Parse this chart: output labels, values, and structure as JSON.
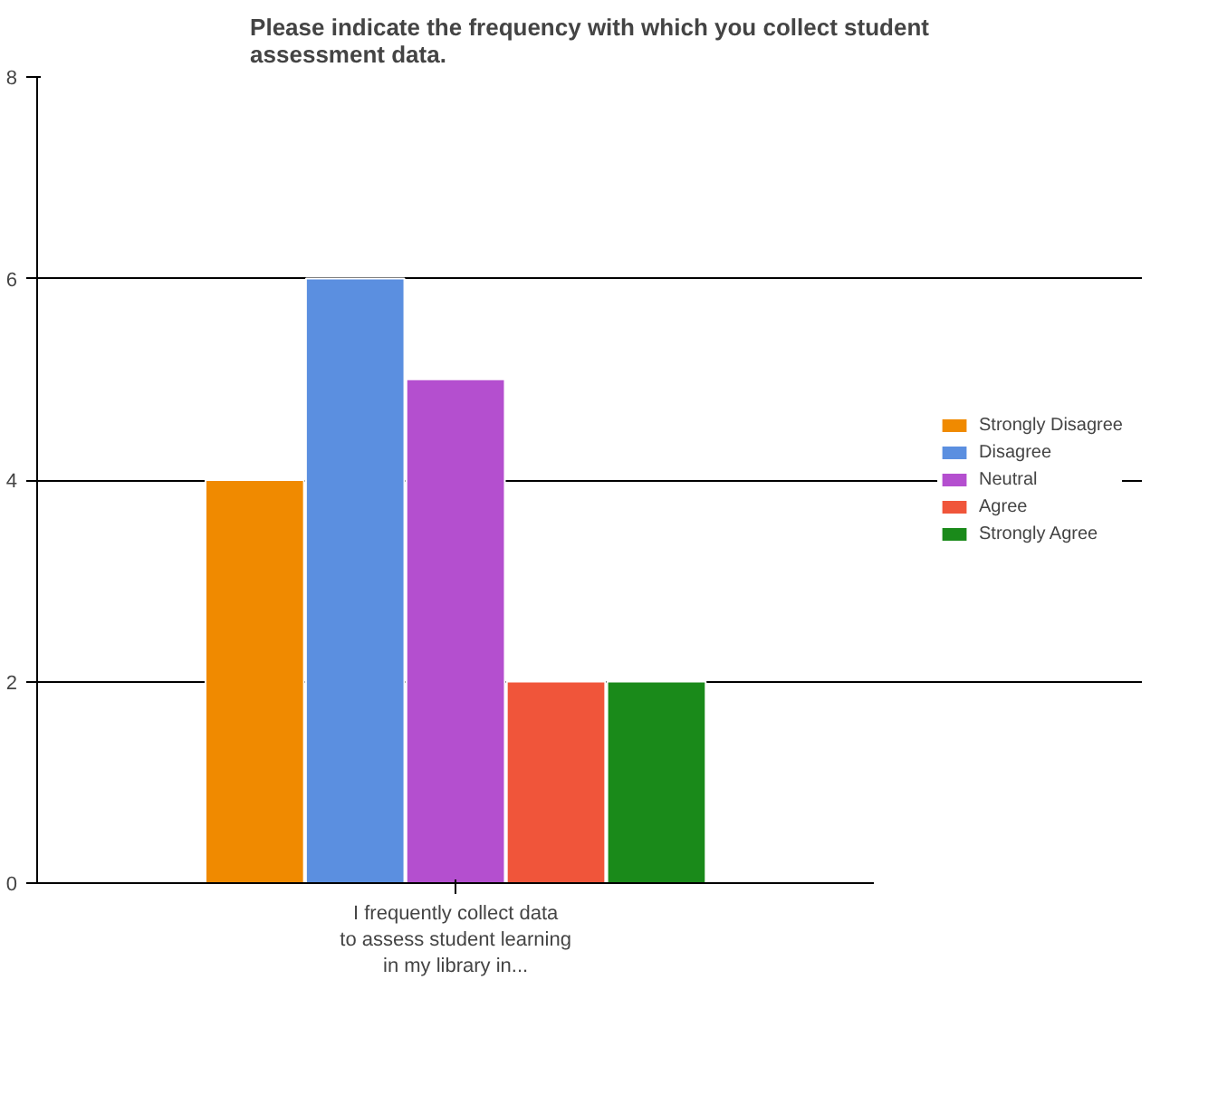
{
  "chart_data": {
    "type": "bar",
    "title": "Please indicate the frequency with which you collect student assessment data.",
    "categories": [
      "I frequently collect data to assess student learning in my library in..."
    ],
    "series": [
      {
        "name": "Strongly Disagree",
        "color": "#f08a00",
        "values": [
          4
        ]
      },
      {
        "name": "Disagree",
        "color": "#5b8fe0",
        "values": [
          6
        ]
      },
      {
        "name": "Neutral",
        "color": "#b44fcf",
        "values": [
          5
        ]
      },
      {
        "name": "Agree",
        "color": "#f0553a",
        "values": [
          2
        ]
      },
      {
        "name": "Strongly Agree",
        "color": "#1a8a1a",
        "values": [
          2
        ]
      }
    ],
    "ylim": [
      0,
      8
    ],
    "yticks": [
      0,
      2,
      4,
      6,
      8
    ],
    "grid": "y",
    "legend": "right"
  }
}
